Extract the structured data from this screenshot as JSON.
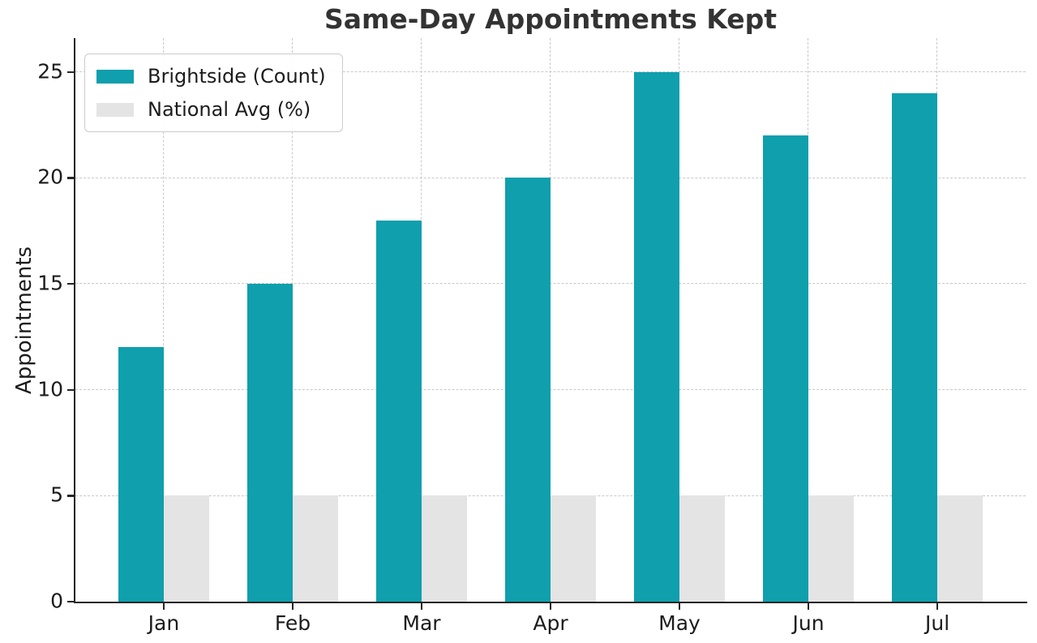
{
  "chart_data": {
    "type": "bar",
    "title": "Same-Day Appointments Kept",
    "xlabel": "",
    "ylabel": "Appointments",
    "categories": [
      "Jan",
      "Feb",
      "Mar",
      "Apr",
      "May",
      "Jun",
      "Jul"
    ],
    "series": [
      {
        "name": "Brightside (Count)",
        "color": "#0f9fad",
        "values": [
          12,
          15,
          18,
          20,
          25,
          22,
          24
        ]
      },
      {
        "name": "National Avg (%)",
        "color": "#e4e4e4",
        "values": [
          5,
          5,
          5,
          5,
          5,
          5,
          5
        ]
      }
    ],
    "yticks": [
      0,
      5,
      10,
      15,
      20,
      25
    ],
    "ylim": [
      0,
      26.6
    ],
    "xlim": [
      -0.685,
      6.685
    ],
    "bar_width_units": 0.35,
    "grid": "dashed",
    "grid_axes": "both",
    "legend_position": "upper-left",
    "colors": {
      "grid": "#c9c9c9",
      "axis": "#262626",
      "text": "#1c1c1c",
      "title": "#333333",
      "background": "#ffffff"
    }
  }
}
